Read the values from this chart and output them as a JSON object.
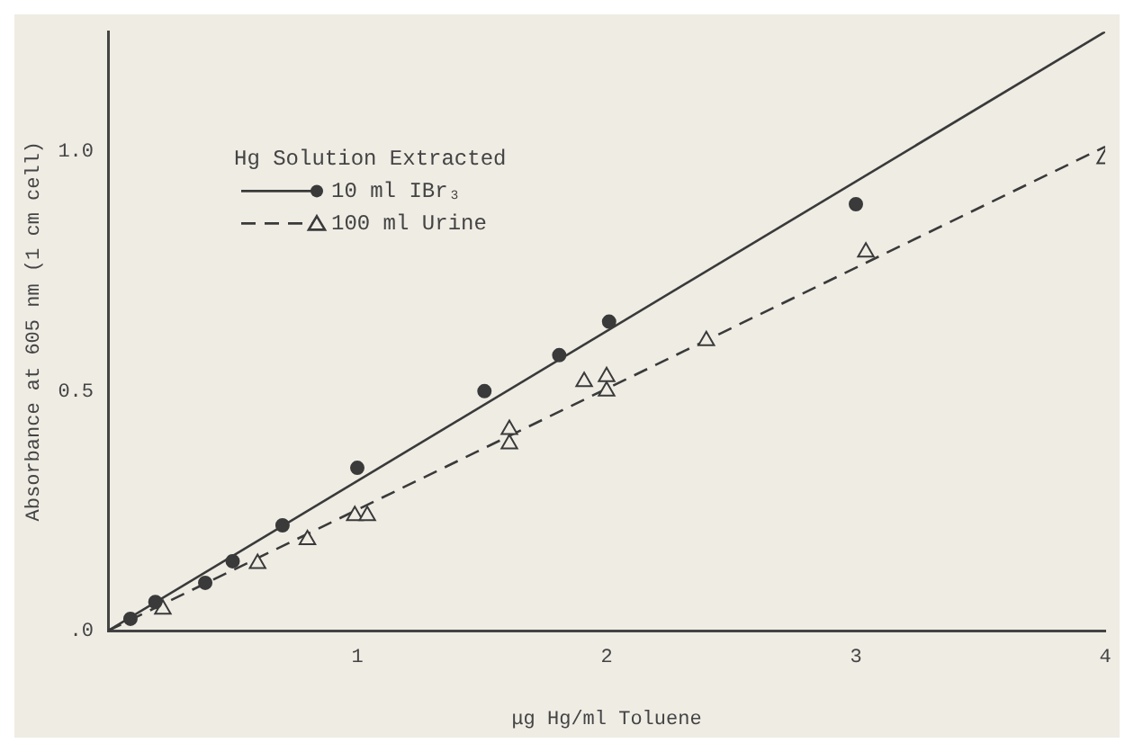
{
  "chart_data": {
    "type": "scatter",
    "xlabel": "μg Hg/ml Toluene",
    "ylabel": "Absorbance at 605 nm (1 cm cell)",
    "legend_title": "Hg Solution Extracted",
    "legend": "top left",
    "grid": false,
    "xlim": [
      0,
      4
    ],
    "xticks": [
      1,
      2,
      3,
      4
    ],
    "ylim": [
      0,
      1.25
    ],
    "yticks": [
      {
        "value": 0,
        "label": ".0"
      },
      {
        "value": 0.5,
        "label": "0.5"
      },
      {
        "value": 1,
        "label": "1.0"
      }
    ],
    "series": [
      {
        "name": "10 ml IBr₃",
        "color": "#3a3a3a",
        "marker": "circle",
        "x": [
          0.09,
          0.19,
          0.39,
          0.5,
          0.7,
          1.0,
          1.51,
          1.81,
          2.01,
          3.0
        ],
        "values": [
          0.025,
          0.06,
          0.1,
          0.145,
          0.22,
          0.34,
          0.5,
          0.575,
          0.645,
          0.89
        ]
      },
      {
        "name": "100 ml Urine",
        "color": "#3a3a3a",
        "marker": "triangle",
        "x": [
          0.22,
          0.6,
          0.8,
          0.99,
          1.04,
          1.61,
          1.61,
          1.91,
          2.0,
          2.0,
          2.4,
          3.04,
          4.0
        ],
        "values": [
          0.045,
          0.14,
          0.19,
          0.24,
          0.24,
          0.42,
          0.39,
          0.52,
          0.53,
          0.5,
          0.605,
          0.79,
          0.985
        ]
      },
      {
        "type": "line",
        "color": "#3a3a3a",
        "line_style": "solid",
        "marker": "none",
        "x": [
          0,
          4
        ],
        "values": [
          0,
          1.25
        ]
      },
      {
        "type": "line",
        "color": "#3a3a3a",
        "line_style": "dashed",
        "marker": "none",
        "x": [
          0,
          4
        ],
        "values": [
          0,
          1.01
        ]
      }
    ]
  }
}
